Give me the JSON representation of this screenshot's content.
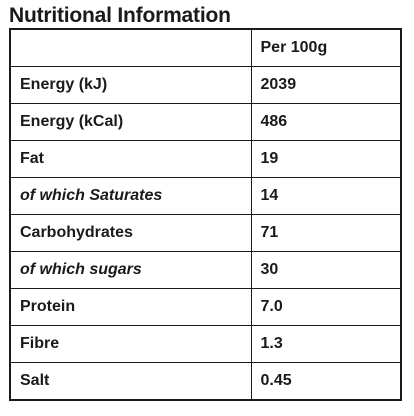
{
  "title": "Nutritional Information",
  "table": {
    "headers": [
      "",
      "Per 100g"
    ],
    "rows": [
      {
        "name": "Energy (kJ)",
        "value": "2039",
        "italic": false
      },
      {
        "name": "Energy (kCal)",
        "value": "486",
        "italic": false
      },
      {
        "name": "Fat",
        "value": "19",
        "italic": false
      },
      {
        "name": "of which Saturates",
        "value": "14",
        "italic": true
      },
      {
        "name": "Carbohydrates",
        "value": "71",
        "italic": false
      },
      {
        "name": "of which sugars",
        "value": "30",
        "italic": true
      },
      {
        "name": "Protein",
        "value": "7.0",
        "italic": false
      },
      {
        "name": "Fibre",
        "value": "1.3",
        "italic": false
      },
      {
        "name": "Salt",
        "value": "0.45",
        "italic": false
      }
    ]
  }
}
